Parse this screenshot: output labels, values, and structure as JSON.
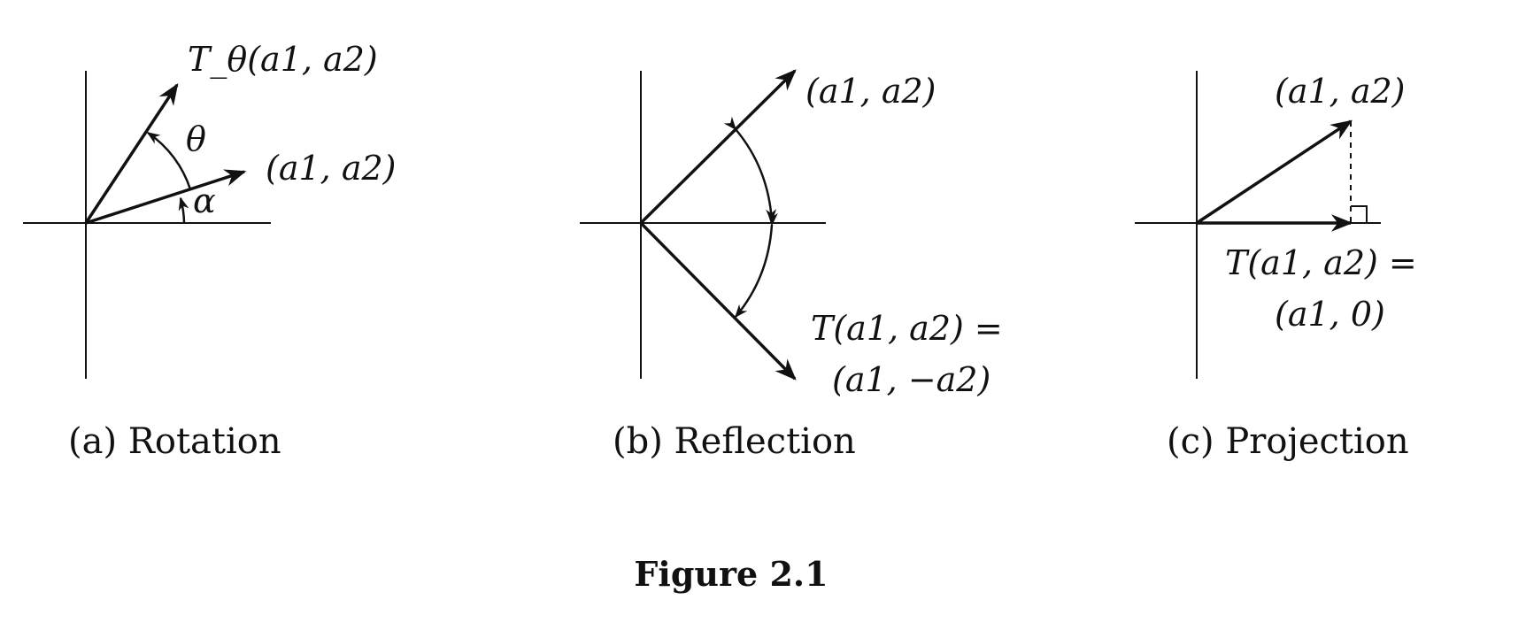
{
  "panels": [
    {
      "caption": "(a) Rotation",
      "labels": {
        "image_vector": "T_θ(a1, a2)",
        "original_vector": "(a1, a2)",
        "theta": "θ",
        "alpha": "α"
      }
    },
    {
      "caption": "(b) Reflection",
      "labels": {
        "original_vector": "(a1, a2)",
        "image_line1": "T(a1, a2) =",
        "image_line2": "(a1, −a2)"
      }
    },
    {
      "caption": "(c) Projection",
      "labels": {
        "original_vector": "(a1, a2)",
        "image_line1": "T(a1, a2) =",
        "image_line2": "(a1, 0)"
      }
    }
  ],
  "figure_title": "Figure 2.1"
}
